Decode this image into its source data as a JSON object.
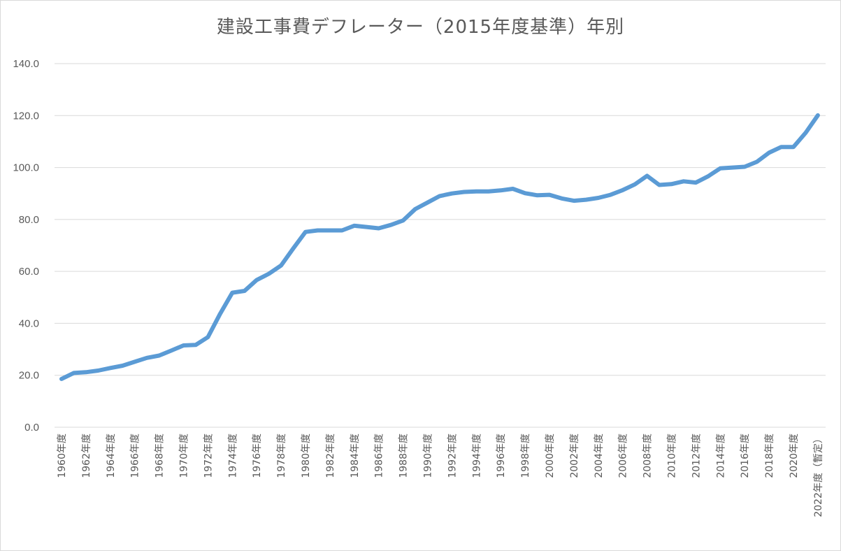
{
  "chart_data": {
    "type": "line",
    "title": "建設工事費デフレーター（2015年度基準）年別",
    "xlabel": "",
    "ylabel": "",
    "ylim": [
      0,
      140
    ],
    "yticks": [
      "0.0",
      "20.0",
      "40.0",
      "60.0",
      "80.0",
      "100.0",
      "120.0",
      "140.0"
    ],
    "grid": true,
    "legend": "none",
    "line_color": "#5b9bd5",
    "categories": [
      "1960年度",
      "1961年度",
      "1962年度",
      "1963年度",
      "1964年度",
      "1965年度",
      "1966年度",
      "1967年度",
      "1968年度",
      "1969年度",
      "1970年度",
      "1971年度",
      "1972年度",
      "1973年度",
      "1974年度",
      "1975年度",
      "1976年度",
      "1977年度",
      "1978年度",
      "1979年度",
      "1980年度",
      "1981年度",
      "1982年度",
      "1983年度",
      "1984年度",
      "1985年度",
      "1986年度",
      "1987年度",
      "1988年度",
      "1989年度",
      "1990年度",
      "1991年度",
      "1992年度",
      "1993年度",
      "1994年度",
      "1995年度",
      "1996年度",
      "1997年度",
      "1998年度",
      "1999年度",
      "2000年度",
      "2001年度",
      "2002年度",
      "2003年度",
      "2004年度",
      "2005年度",
      "2006年度",
      "2007年度",
      "2008年度",
      "2009年度",
      "2010年度",
      "2011年度",
      "2012年度",
      "2013年度",
      "2014年度",
      "2015年度",
      "2016年度",
      "2017年度",
      "2018年度",
      "2019年度",
      "2020年度",
      "2021年度",
      "2022年度（暫定）"
    ],
    "visible_tick_labels": [
      "1960年度",
      "1962年度",
      "1964年度",
      "1966年度",
      "1968年度",
      "1970年度",
      "1972年度",
      "1974年度",
      "1976年度",
      "1978年度",
      "1980年度",
      "1982年度",
      "1984年度",
      "1986年度",
      "1988年度",
      "1990年度",
      "1992年度",
      "1994年度",
      "1996年度",
      "1998年度",
      "2000年度",
      "2002年度",
      "2004年度",
      "2006年度",
      "2008年度",
      "2010年度",
      "2012年度",
      "2014年度",
      "2016年度",
      "2018年度",
      "2020年度",
      "2022年度（暫定）"
    ],
    "series": [
      {
        "values": [
          18.6,
          20.9,
          21.2,
          21.8,
          22.8,
          23.7,
          25.2,
          26.7,
          27.6,
          29.5,
          31.5,
          31.7,
          34.7,
          43.7,
          51.8,
          52.5,
          56.7,
          59.1,
          62.3,
          68.9,
          75.2,
          75.8,
          75.8,
          75.8,
          77.6,
          77.1,
          76.6,
          77.9,
          79.6,
          84.0,
          86.5,
          89.0,
          90.0,
          90.6,
          90.8,
          90.8,
          91.2,
          91.8,
          90.1,
          89.3,
          89.5,
          88.1,
          87.2,
          87.6,
          88.3,
          89.5,
          91.3,
          93.5,
          96.8,
          93.3,
          93.6,
          94.7,
          94.2,
          96.6,
          99.7,
          100.0,
          100.3,
          102.2,
          105.7,
          107.9,
          107.9,
          113.4,
          120.1
        ]
      }
    ]
  }
}
